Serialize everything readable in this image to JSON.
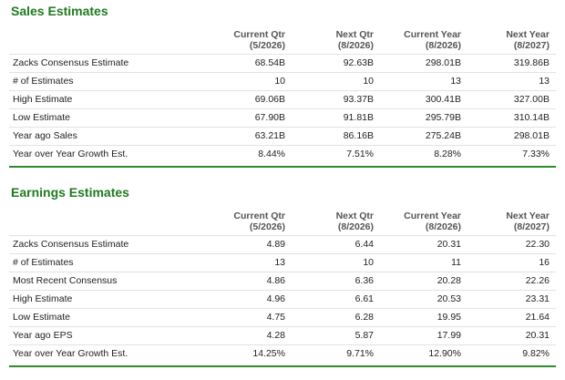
{
  "sections": [
    {
      "title": "Sales Estimates",
      "columns": [
        {
          "label": "Current Qtr",
          "period": "(5/2026)"
        },
        {
          "label": "Next Qtr",
          "period": "(8/2026)"
        },
        {
          "label": "Current Year",
          "period": "(8/2026)"
        },
        {
          "label": "Next Year",
          "period": "(8/2027)"
        }
      ],
      "rows": [
        [
          "Zacks Consensus Estimate",
          "68.54B",
          "92.63B",
          "298.01B",
          "319.86B"
        ],
        [
          "# of Estimates",
          "10",
          "10",
          "13",
          "13"
        ],
        [
          "High Estimate",
          "69.06B",
          "93.37B",
          "300.41B",
          "327.00B"
        ],
        [
          "Low Estimate",
          "67.90B",
          "91.81B",
          "295.79B",
          "310.14B"
        ],
        [
          "Year ago Sales",
          "63.21B",
          "86.16B",
          "275.24B",
          "298.01B"
        ],
        [
          "Year over Year Growth Est.",
          "8.44%",
          "7.51%",
          "8.28%",
          "7.33%"
        ]
      ]
    },
    {
      "title": "Earnings Estimates",
      "columns": [
        {
          "label": "Current Qtr",
          "period": "(5/2026)"
        },
        {
          "label": "Next Qtr",
          "period": "(8/2026)"
        },
        {
          "label": "Current Year",
          "period": "(8/2026)"
        },
        {
          "label": "Next Year",
          "period": "(8/2027)"
        }
      ],
      "rows": [
        [
          "Zacks Consensus Estimate",
          "4.89",
          "6.44",
          "20.31",
          "22.30"
        ],
        [
          "# of Estimates",
          "13",
          "10",
          "11",
          "16"
        ],
        [
          "Most Recent Consensus",
          "4.86",
          "6.36",
          "20.28",
          "22.26"
        ],
        [
          "High Estimate",
          "4.96",
          "6.61",
          "20.53",
          "23.31"
        ],
        [
          "Low Estimate",
          "4.75",
          "6.28",
          "19.95",
          "21.64"
        ],
        [
          "Year ago EPS",
          "4.28",
          "5.87",
          "17.99",
          "20.31"
        ],
        [
          "Year over Year Growth Est.",
          "14.25%",
          "9.71%",
          "12.90%",
          "9.82%"
        ]
      ]
    }
  ]
}
